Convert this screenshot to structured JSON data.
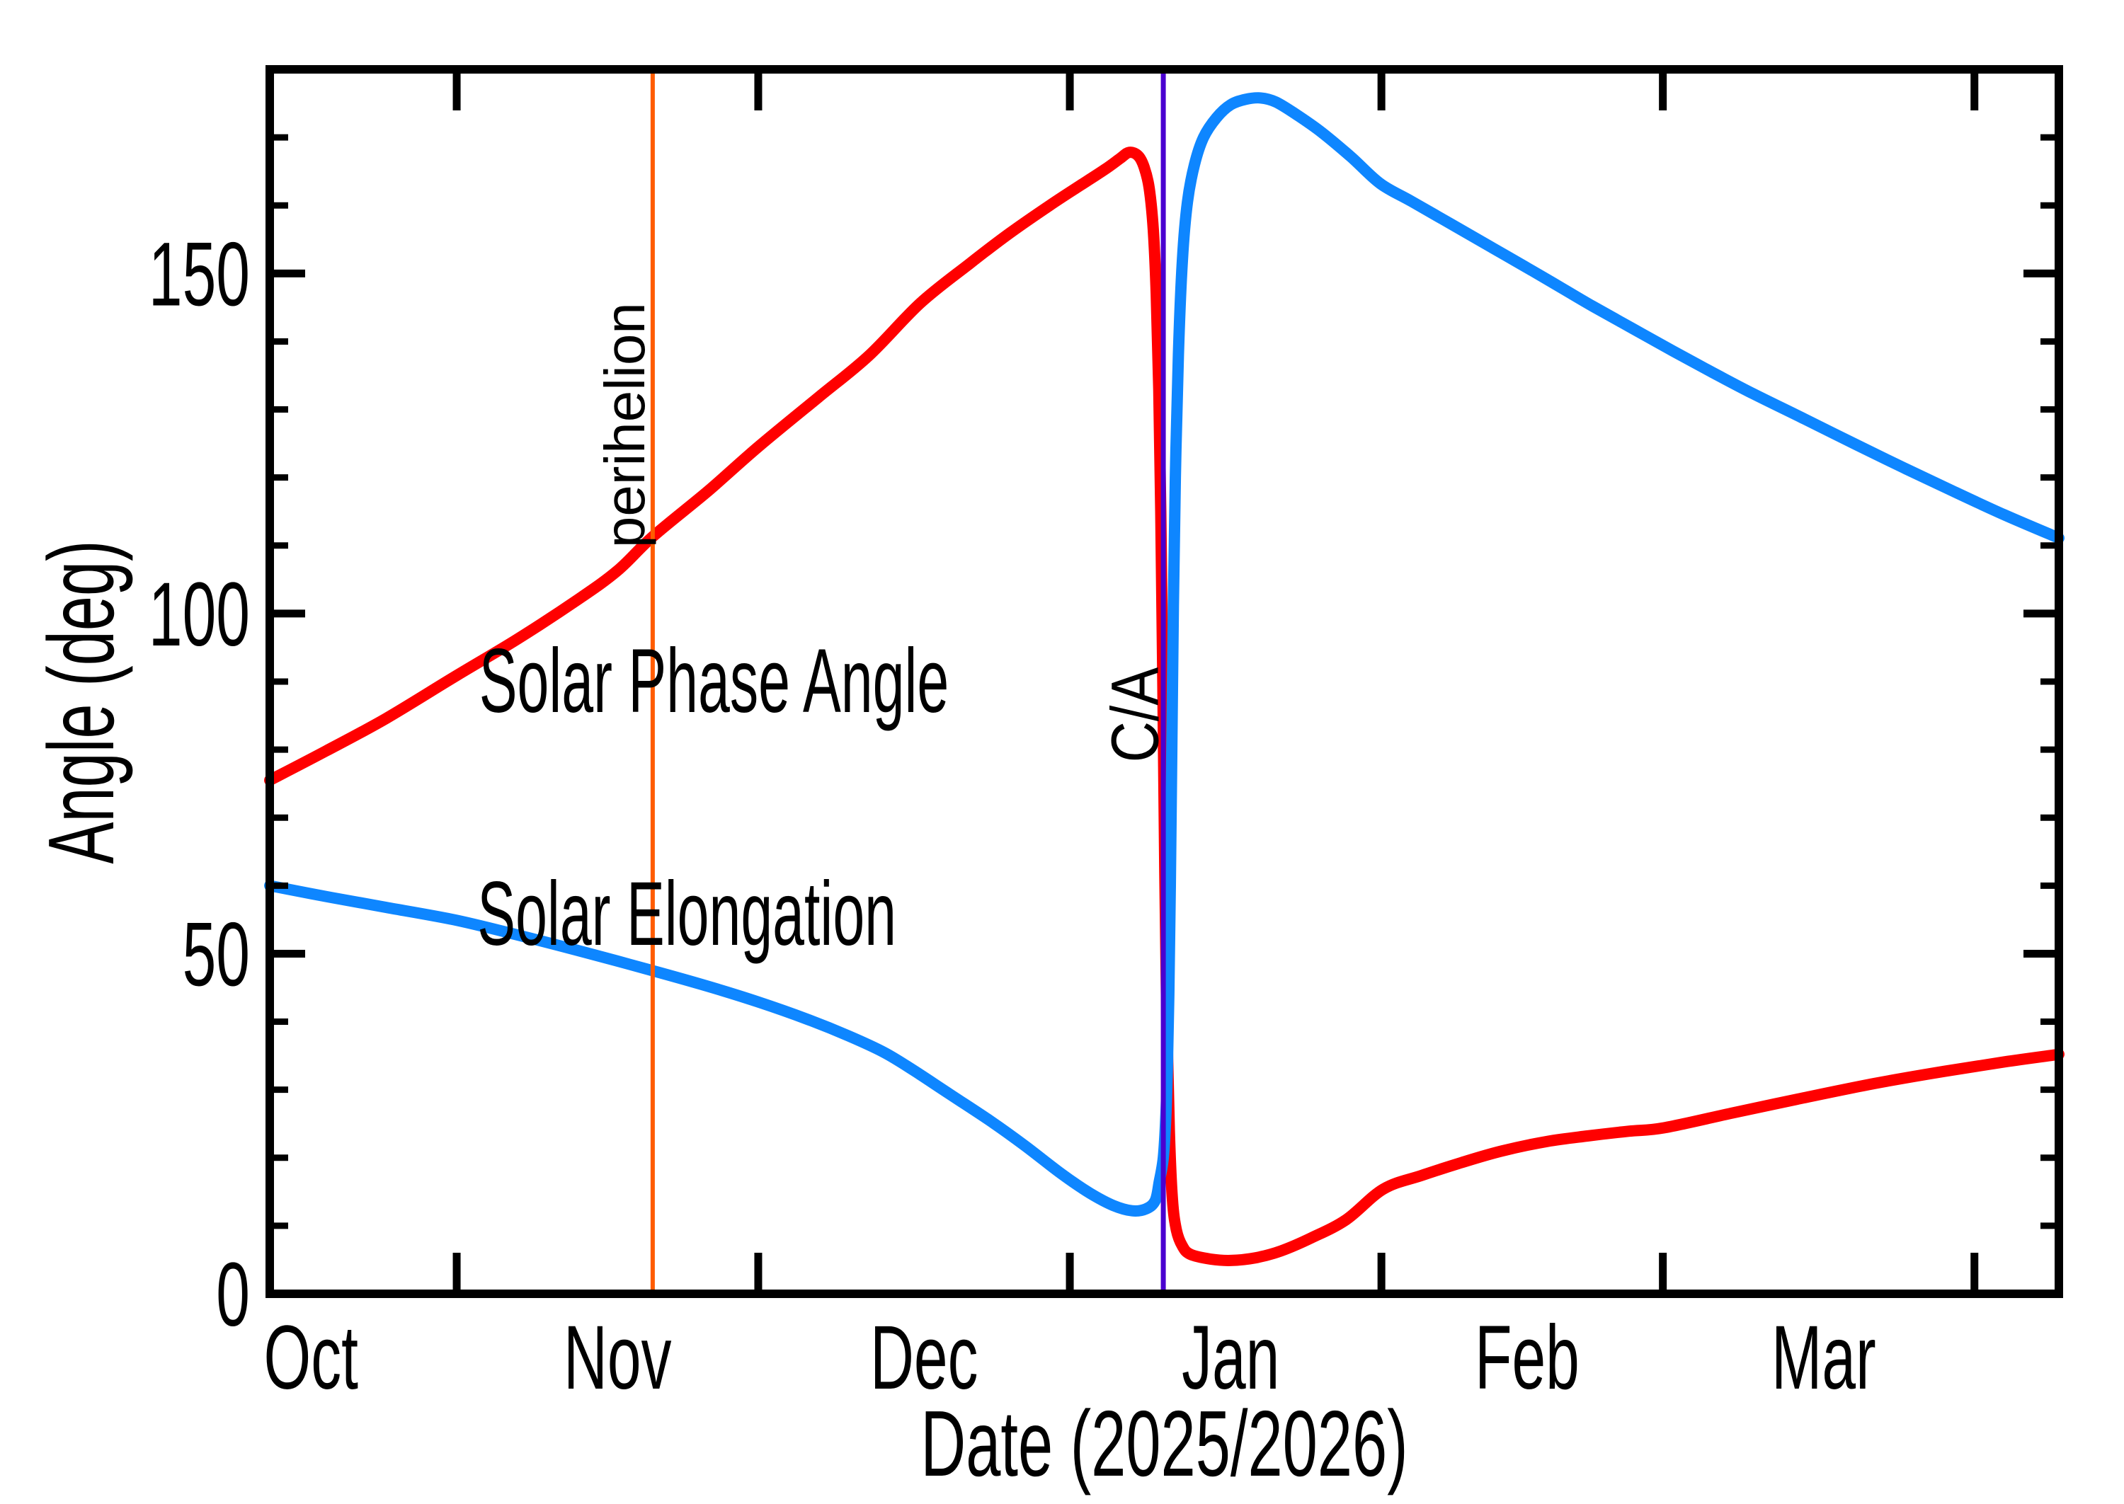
{
  "chart_data": {
    "type": "line",
    "title": "",
    "xlabel": "Date (2025/2026)",
    "ylabel": "Angle (deg)",
    "x_axis": {
      "unit": "days since 2025-10-01",
      "range": [
        12.4,
        190.4
      ],
      "month_ticks": [
        31,
        61,
        92,
        123,
        151,
        182
      ],
      "month_labels": [
        {
          "day": 16.5,
          "label": "Oct"
        },
        {
          "day": 47,
          "label": "Nov"
        },
        {
          "day": 77.5,
          "label": "Dec"
        },
        {
          "day": 108,
          "label": "Jan"
        },
        {
          "day": 137.5,
          "label": "Feb"
        },
        {
          "day": 167,
          "label": "Mar"
        }
      ],
      "grid": false
    },
    "y_axis": {
      "range": [
        0,
        180
      ],
      "major_ticks": [
        0,
        50,
        100,
        150
      ],
      "minor_step": 10,
      "grid": false
    },
    "legend_position": "labels-on-curves",
    "series": [
      {
        "name": "Solar Phase Angle",
        "color": "#ff0000",
        "label_anchor": {
          "day": 56.6,
          "deg": 90.3
        },
        "points": [
          [
            12.4,
            75.5
          ],
          [
            18,
            79.8
          ],
          [
            24,
            84.6
          ],
          [
            31,
            90.9
          ],
          [
            37,
            96.2
          ],
          [
            43,
            102
          ],
          [
            47,
            106.3
          ],
          [
            50.5,
            111.3
          ],
          [
            56,
            118
          ],
          [
            61,
            124.5
          ],
          [
            67,
            131.8
          ],
          [
            72,
            137.9
          ],
          [
            77.1,
            145.6
          ],
          [
            82,
            151.4
          ],
          [
            86,
            155.9
          ],
          [
            90,
            160
          ],
          [
            93,
            162.9
          ],
          [
            95.5,
            165.3
          ],
          [
            97,
            166.9
          ],
          [
            97.9,
            167.8
          ],
          [
            98.8,
            167.3
          ],
          [
            99.4,
            165.6
          ],
          [
            99.9,
            162.5
          ],
          [
            100.3,
            156.5
          ],
          [
            100.6,
            147
          ],
          [
            100.85,
            133
          ],
          [
            101.05,
            115
          ],
          [
            101.25,
            90
          ],
          [
            101.45,
            62
          ],
          [
            101.65,
            40
          ],
          [
            101.9,
            24
          ],
          [
            102.2,
            14
          ],
          [
            102.6,
            9.4
          ],
          [
            103.2,
            7
          ],
          [
            104,
            5.8
          ],
          [
            106,
            5.1
          ],
          [
            108,
            4.9
          ],
          [
            110.5,
            5.3
          ],
          [
            113,
            6.3
          ],
          [
            116,
            8.2
          ],
          [
            119.5,
            10.9
          ],
          [
            123.2,
            15.4
          ],
          [
            127,
            17.4
          ],
          [
            131,
            19.3
          ],
          [
            135,
            21
          ],
          [
            139.5,
            22.4
          ],
          [
            143.5,
            23.2
          ],
          [
            147.6,
            23.9
          ],
          [
            151.1,
            24.4
          ],
          [
            158,
            26.6
          ],
          [
            165,
            28.8
          ],
          [
            172,
            30.9
          ],
          [
            179,
            32.7
          ],
          [
            185,
            34.1
          ],
          [
            190.4,
            35.2
          ]
        ]
      },
      {
        "name": "Solar Elongation",
        "color": "#0e86ff",
        "label_anchor": {
          "day": 53.9,
          "deg": 56.1
        },
        "points": [
          [
            12.4,
            60
          ],
          [
            18,
            58.4
          ],
          [
            24,
            56.8
          ],
          [
            31,
            54.9
          ],
          [
            38,
            52.4
          ],
          [
            44,
            50.1
          ],
          [
            50.5,
            47.5
          ],
          [
            56,
            45.2
          ],
          [
            61,
            42.9
          ],
          [
            66,
            40.3
          ],
          [
            70,
            37.9
          ],
          [
            73.5,
            35.5
          ],
          [
            76.4,
            32.9
          ],
          [
            80,
            29.4
          ],
          [
            84.2,
            25.3
          ],
          [
            87.5,
            21.8
          ],
          [
            91.2,
            17.6
          ],
          [
            94,
            14.8
          ],
          [
            96.3,
            13
          ],
          [
            98.2,
            12.2
          ],
          [
            99.6,
            12.5
          ],
          [
            100.5,
            13.7
          ],
          [
            100.9,
            16.5
          ],
          [
            101.3,
            20
          ],
          [
            101.55,
            26
          ],
          [
            101.7,
            33
          ],
          [
            101.85,
            44
          ],
          [
            102,
            60
          ],
          [
            102.15,
            80
          ],
          [
            102.3,
            101
          ],
          [
            102.5,
            120
          ],
          [
            102.8,
            138
          ],
          [
            103.2,
            152
          ],
          [
            103.7,
            160.5
          ],
          [
            104.4,
            166
          ],
          [
            105.3,
            170
          ],
          [
            106.6,
            172.9
          ],
          [
            108,
            174.8
          ],
          [
            109.5,
            175.6
          ],
          [
            111,
            175.8
          ],
          [
            112.5,
            175.2
          ],
          [
            114.5,
            173.4
          ],
          [
            117,
            170.8
          ],
          [
            120,
            167.1
          ],
          [
            122.9,
            163.2
          ],
          [
            126,
            160.6
          ],
          [
            130,
            157.2
          ],
          [
            134,
            153.8
          ],
          [
            138,
            150.4
          ],
          [
            141,
            147.8
          ],
          [
            144,
            145.2
          ],
          [
            148,
            141.9
          ],
          [
            152,
            138.6
          ],
          [
            156,
            135.4
          ],
          [
            160,
            132.3
          ],
          [
            165.1,
            128.6
          ],
          [
            170,
            125
          ],
          [
            175,
            121.4
          ],
          [
            180,
            117.9
          ],
          [
            185,
            114.5
          ],
          [
            190.4,
            111.1
          ]
        ]
      }
    ],
    "events": [
      {
        "label": "perihelion",
        "day": 50.5,
        "approx_date": "Nov 20 2025",
        "color": "#ff5c00",
        "label_anchor": {
          "day": 45.3,
          "deg": 127.7
        }
      },
      {
        "label": "C/A",
        "day": 101.3,
        "approx_date": "Jan 10 2026",
        "color": "#4a00d0",
        "label_anchor": {
          "day": 96.2,
          "deg": 85.1
        }
      }
    ],
    "axis_color": "#000000",
    "background_color": "#ffffff"
  }
}
